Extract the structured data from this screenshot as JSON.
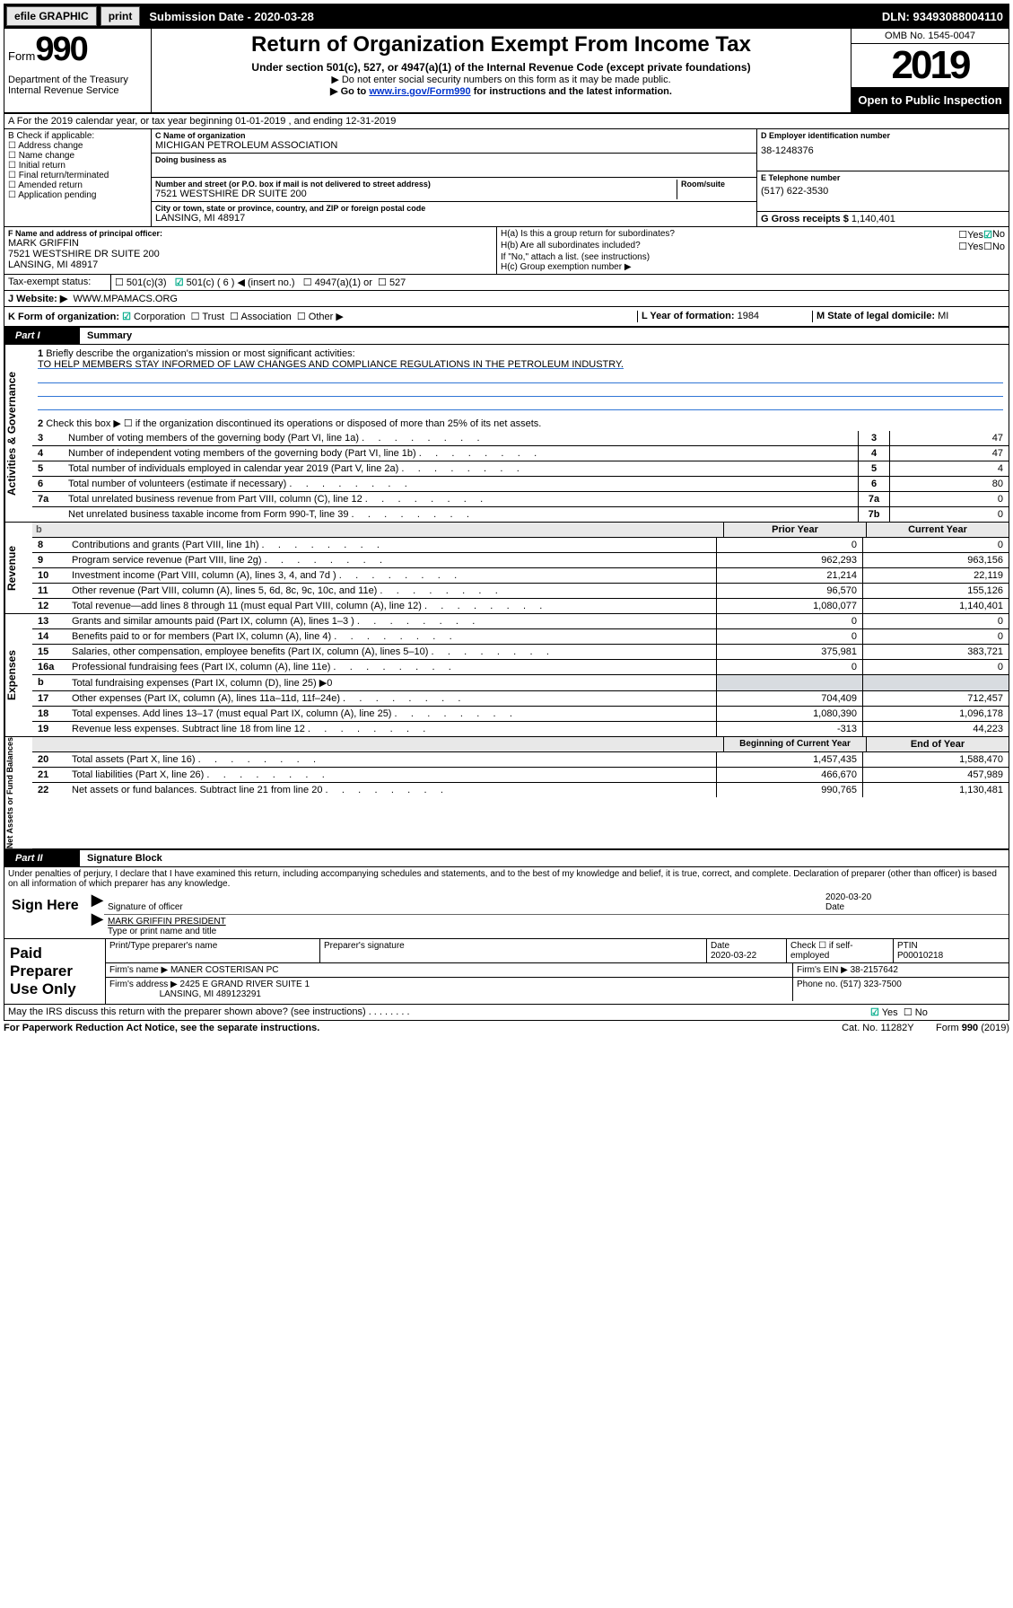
{
  "topbar": {
    "efile": "efile GRAPHIC",
    "print": "print",
    "subdate_label": "Submission Date - 2020-03-28",
    "dln": "DLN: 93493088004110"
  },
  "header": {
    "form_prefix": "Form",
    "form_num": "990",
    "dept": "Department of the Treasury\nInternal Revenue Service",
    "title": "Return of Organization Exempt From Income Tax",
    "subtitle": "Under section 501(c), 527, or 4947(a)(1) of the Internal Revenue Code (except private foundations)",
    "note1": "▶ Do not enter social security numbers on this form as it may be made public.",
    "note2_pre": "▶ Go to ",
    "note2_link": "www.irs.gov/Form990",
    "note2_post": " for instructions and the latest information.",
    "omb": "OMB No. 1545-0047",
    "year": "2019",
    "open": "Open to Public Inspection"
  },
  "lineA": "A For the 2019 calendar year, or tax year beginning 01-01-2019    , and ending 12-31-2019",
  "boxB": {
    "label": "B Check if applicable:",
    "items": [
      "Address change",
      "Name change",
      "Initial return",
      "Final return/terminated",
      "Amended return",
      "Application pending"
    ]
  },
  "boxC": {
    "name_lbl": "C Name of organization",
    "name": "MICHIGAN PETROLEUM ASSOCIATION",
    "dba_lbl": "Doing business as",
    "addr_lbl": "Number and street (or P.O. box if mail is not delivered to street address)",
    "room_lbl": "Room/suite",
    "addr": "7521 WESTSHIRE DR SUITE 200",
    "city_lbl": "City or town, state or province, country, and ZIP or foreign postal code",
    "city": "LANSING, MI  48917"
  },
  "boxD": {
    "lbl": "D Employer identification number",
    "val": "38-1248376"
  },
  "boxE": {
    "lbl": "E Telephone number",
    "val": "(517) 622-3530"
  },
  "boxG": {
    "lbl": "G Gross receipts $",
    "val": "1,140,401"
  },
  "boxF": {
    "lbl": "F  Name and address of principal officer:",
    "name": "MARK GRIFFIN",
    "addr1": "7521 WESTSHIRE DR SUITE 200",
    "addr2": "LANSING, MI  48917"
  },
  "boxH": {
    "a": "H(a)  Is this a group return for subordinates?",
    "b": "H(b)  Are all subordinates included?",
    "b_note": "If \"No,\" attach a list. (see instructions)",
    "c": "H(c)  Group exemption number ▶",
    "yes": "Yes",
    "no": "No"
  },
  "taxexempt": {
    "lbl": "Tax-exempt status:",
    "c3": "501(c)(3)",
    "c": "501(c) ( 6 ) ◀ (insert no.)",
    "a1": "4947(a)(1) or",
    "527": "527"
  },
  "boxJ": {
    "lbl": "J  Website: ▶",
    "val": "WWW.MPAMACS.ORG"
  },
  "boxK": {
    "lbl": "K Form of organization:",
    "corp": "Corporation",
    "trust": "Trust",
    "assoc": "Association",
    "other": "Other ▶"
  },
  "boxL": {
    "lbl": "L Year of formation:",
    "val": "1984"
  },
  "boxM": {
    "lbl": "M State of legal domicile:",
    "val": "MI"
  },
  "part1": {
    "label": "Part I",
    "title": "Summary"
  },
  "q1": {
    "num": "1",
    "text": "Briefly describe the organization's mission or most significant activities:",
    "mission": "TO HELP MEMBERS STAY INFORMED OF LAW CHANGES AND COMPLIANCE REGULATIONS IN THE PETROLEUM INDUSTRY."
  },
  "q2": {
    "num": "2",
    "text": "Check this box ▶ ☐  if the organization discontinued its operations or disposed of more than 25% of its net assets."
  },
  "govlines": [
    {
      "n": "3",
      "t": "Number of voting members of the governing body (Part VI, line 1a)",
      "b": "3",
      "v": "47"
    },
    {
      "n": "4",
      "t": "Number of independent voting members of the governing body (Part VI, line 1b)",
      "b": "4",
      "v": "47"
    },
    {
      "n": "5",
      "t": "Total number of individuals employed in calendar year 2019 (Part V, line 2a)",
      "b": "5",
      "v": "4"
    },
    {
      "n": "6",
      "t": "Total number of volunteers (estimate if necessary)",
      "b": "6",
      "v": "80"
    },
    {
      "n": "7a",
      "t": "Total unrelated business revenue from Part VIII, column (C), line 12",
      "b": "7a",
      "v": "0"
    },
    {
      "n": "",
      "t": "Net unrelated business taxable income from Form 990-T, line 39",
      "b": "7b",
      "v": "0"
    }
  ],
  "colheads": {
    "blank": "b",
    "prior": "Prior Year",
    "current": "Current Year",
    "begin": "Beginning of Current Year",
    "end": "End of Year"
  },
  "revenue": [
    {
      "n": "8",
      "t": "Contributions and grants (Part VIII, line 1h)",
      "p": "0",
      "c": "0"
    },
    {
      "n": "9",
      "t": "Program service revenue (Part VIII, line 2g)",
      "p": "962,293",
      "c": "963,156"
    },
    {
      "n": "10",
      "t": "Investment income (Part VIII, column (A), lines 3, 4, and 7d )",
      "p": "21,214",
      "c": "22,119"
    },
    {
      "n": "11",
      "t": "Other revenue (Part VIII, column (A), lines 5, 6d, 8c, 9c, 10c, and 11e)",
      "p": "96,570",
      "c": "155,126"
    },
    {
      "n": "12",
      "t": "Total revenue—add lines 8 through 11 (must equal Part VIII, column (A), line 12)",
      "p": "1,080,077",
      "c": "1,140,401"
    }
  ],
  "expenses": [
    {
      "n": "13",
      "t": "Grants and similar amounts paid (Part IX, column (A), lines 1–3 )",
      "p": "0",
      "c": "0"
    },
    {
      "n": "14",
      "t": "Benefits paid to or for members (Part IX, column (A), line 4)",
      "p": "0",
      "c": "0"
    },
    {
      "n": "15",
      "t": "Salaries, other compensation, employee benefits (Part IX, column (A), lines 5–10)",
      "p": "375,981",
      "c": "383,721"
    },
    {
      "n": "16a",
      "t": "Professional fundraising fees (Part IX, column (A), line 11e)",
      "p": "0",
      "c": "0"
    },
    {
      "n": "b",
      "t": "Total fundraising expenses (Part IX, column (D), line 25) ▶0",
      "p": "",
      "c": "",
      "shaded": true
    },
    {
      "n": "17",
      "t": "Other expenses (Part IX, column (A), lines 11a–11d, 11f–24e)",
      "p": "704,409",
      "c": "712,457"
    },
    {
      "n": "18",
      "t": "Total expenses. Add lines 13–17 (must equal Part IX, column (A), line 25)",
      "p": "1,080,390",
      "c": "1,096,178"
    },
    {
      "n": "19",
      "t": "Revenue less expenses. Subtract line 18 from line 12",
      "p": "-313",
      "c": "44,223"
    }
  ],
  "netassets": [
    {
      "n": "20",
      "t": "Total assets (Part X, line 16)",
      "p": "1,457,435",
      "c": "1,588,470"
    },
    {
      "n": "21",
      "t": "Total liabilities (Part X, line 26)",
      "p": "466,670",
      "c": "457,989"
    },
    {
      "n": "22",
      "t": "Net assets or fund balances. Subtract line 21 from line 20",
      "p": "990,765",
      "c": "1,130,481"
    }
  ],
  "sidelabels": {
    "gov": "Activities & Governance",
    "rev": "Revenue",
    "exp": "Expenses",
    "net": "Net Assets or Fund Balances"
  },
  "part2": {
    "label": "Part II",
    "title": "Signature Block"
  },
  "perjury": "Under penalties of perjury, I declare that I have examined this return, including accompanying schedules and statements, and to the best of my knowledge and belief, it is true, correct, and complete. Declaration of preparer (other than officer) is based on all information of which preparer has any knowledge.",
  "sign": {
    "here": "Sign Here",
    "sig_lbl": "Signature of officer",
    "date": "2020-03-20",
    "date_lbl": "Date",
    "name": "MARK GRIFFIN PRESIDENT",
    "name_lbl": "Type or print name and title"
  },
  "paid": {
    "lbl": "Paid Preparer Use Only",
    "prep_lbl": "Print/Type preparer's name",
    "sig_lbl": "Preparer's signature",
    "date_lbl": "Date",
    "date": "2020-03-22",
    "check_lbl": "Check ☐ if self-employed",
    "ptin_lbl": "PTIN",
    "ptin": "P00010218",
    "firm_lbl": "Firm's name    ▶",
    "firm": "MANER COSTERISAN PC",
    "ein_lbl": "Firm's EIN ▶",
    "ein": "38-2157642",
    "addr_lbl": "Firm's address ▶",
    "addr1": "2425 E GRAND RIVER SUITE 1",
    "addr2": "LANSING, MI  489123291",
    "phone_lbl": "Phone no.",
    "phone": "(517) 323-7500"
  },
  "discuss": "May the IRS discuss this return with the preparer shown above? (see instructions)",
  "footer": {
    "pra": "For Paperwork Reduction Act Notice, see the separate instructions.",
    "cat": "Cat. No. 11282Y",
    "form": "Form 990 (2019)"
  }
}
